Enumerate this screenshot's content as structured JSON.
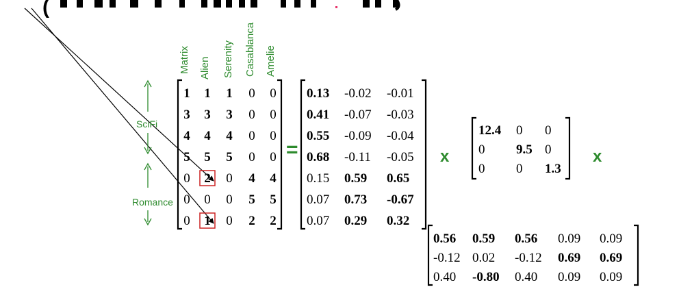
{
  "header": {
    "fragment": "("
  },
  "movies": [
    "Matrix",
    "Alien",
    "Serenity",
    "Casablanca",
    "Amelie"
  ],
  "genres": {
    "scifi": "SciFi",
    "romance": "Romance"
  },
  "operators": {
    "equals": "=",
    "times": "x"
  },
  "colors": {
    "label_green": "#2e8b2e",
    "highlight_box": "#cc2222",
    "ink": "#000000",
    "header_pink": "#e8336a"
  },
  "matrices": {
    "A": {
      "rows": [
        [
          {
            "v": "1",
            "b": true
          },
          {
            "v": "1",
            "b": true
          },
          {
            "v": "1",
            "b": true
          },
          {
            "v": "0",
            "b": false
          },
          {
            "v": "0",
            "b": false
          }
        ],
        [
          {
            "v": "3",
            "b": true
          },
          {
            "v": "3",
            "b": true
          },
          {
            "v": "3",
            "b": true
          },
          {
            "v": "0",
            "b": false
          },
          {
            "v": "0",
            "b": false
          }
        ],
        [
          {
            "v": "4",
            "b": true
          },
          {
            "v": "4",
            "b": true
          },
          {
            "v": "4",
            "b": true
          },
          {
            "v": "0",
            "b": false
          },
          {
            "v": "0",
            "b": false
          }
        ],
        [
          {
            "v": "5",
            "b": true
          },
          {
            "v": "5",
            "b": true
          },
          {
            "v": "5",
            "b": true
          },
          {
            "v": "0",
            "b": false
          },
          {
            "v": "0",
            "b": false
          }
        ],
        [
          {
            "v": "0",
            "b": false
          },
          {
            "v": "2",
            "b": true
          },
          {
            "v": "0",
            "b": false
          },
          {
            "v": "4",
            "b": true
          },
          {
            "v": "4",
            "b": true
          }
        ],
        [
          {
            "v": "0",
            "b": false
          },
          {
            "v": "0",
            "b": false
          },
          {
            "v": "0",
            "b": false
          },
          {
            "v": "5",
            "b": true
          },
          {
            "v": "5",
            "b": true
          }
        ],
        [
          {
            "v": "0",
            "b": false
          },
          {
            "v": "1",
            "b": true
          },
          {
            "v": "0",
            "b": false
          },
          {
            "v": "2",
            "b": true
          },
          {
            "v": "2",
            "b": true
          }
        ]
      ],
      "highlighted_cells": [
        [
          4,
          1
        ],
        [
          6,
          1
        ]
      ]
    },
    "U": {
      "rows": [
        [
          {
            "v": "0.13",
            "b": true
          },
          {
            "v": "-0.02",
            "b": false
          },
          {
            "v": "-0.01",
            "b": false
          }
        ],
        [
          {
            "v": "0.41",
            "b": true
          },
          {
            "v": "-0.07",
            "b": false
          },
          {
            "v": "-0.03",
            "b": false
          }
        ],
        [
          {
            "v": "0.55",
            "b": true
          },
          {
            "v": "-0.09",
            "b": false
          },
          {
            "v": "-0.04",
            "b": false
          }
        ],
        [
          {
            "v": "0.68",
            "b": true
          },
          {
            "v": "-0.11",
            "b": false
          },
          {
            "v": "-0.05",
            "b": false
          }
        ],
        [
          {
            "v": "0.15",
            "b": false
          },
          {
            "v": "0.59",
            "b": true
          },
          {
            "v": "0.65",
            "b": true
          }
        ],
        [
          {
            "v": "0.07",
            "b": false
          },
          {
            "v": "0.73",
            "b": true
          },
          {
            "v": "-0.67",
            "b": true
          }
        ],
        [
          {
            "v": "0.07",
            "b": false
          },
          {
            "v": "0.29",
            "b": true
          },
          {
            "v": "0.32",
            "b": true
          }
        ]
      ]
    },
    "S": {
      "rows": [
        [
          {
            "v": "12.4",
            "b": true
          },
          {
            "v": "0",
            "b": false
          },
          {
            "v": "0",
            "b": false
          }
        ],
        [
          {
            "v": "0",
            "b": false
          },
          {
            "v": "9.5",
            "b": true
          },
          {
            "v": "0",
            "b": false
          }
        ],
        [
          {
            "v": "0",
            "b": false
          },
          {
            "v": "0",
            "b": false
          },
          {
            "v": "1.3",
            "b": true
          }
        ]
      ]
    },
    "V": {
      "rows": [
        [
          {
            "v": "0.56",
            "b": true
          },
          {
            "v": "0.59",
            "b": true
          },
          {
            "v": "0.56",
            "b": true
          },
          {
            "v": "0.09",
            "b": false
          },
          {
            "v": "0.09",
            "b": false
          }
        ],
        [
          {
            "v": "-0.12",
            "b": false
          },
          {
            "v": "0.02",
            "b": false
          },
          {
            "v": "-0.12",
            "b": false
          },
          {
            "v": "0.69",
            "b": true
          },
          {
            "v": "0.69",
            "b": true
          }
        ],
        [
          {
            "v": "0.40",
            "b": false
          },
          {
            "v": "-0.80",
            "b": true
          },
          {
            "v": "0.40",
            "b": false
          },
          {
            "v": "0.09",
            "b": false
          },
          {
            "v": "0.09",
            "b": false
          }
        ]
      ]
    }
  }
}
